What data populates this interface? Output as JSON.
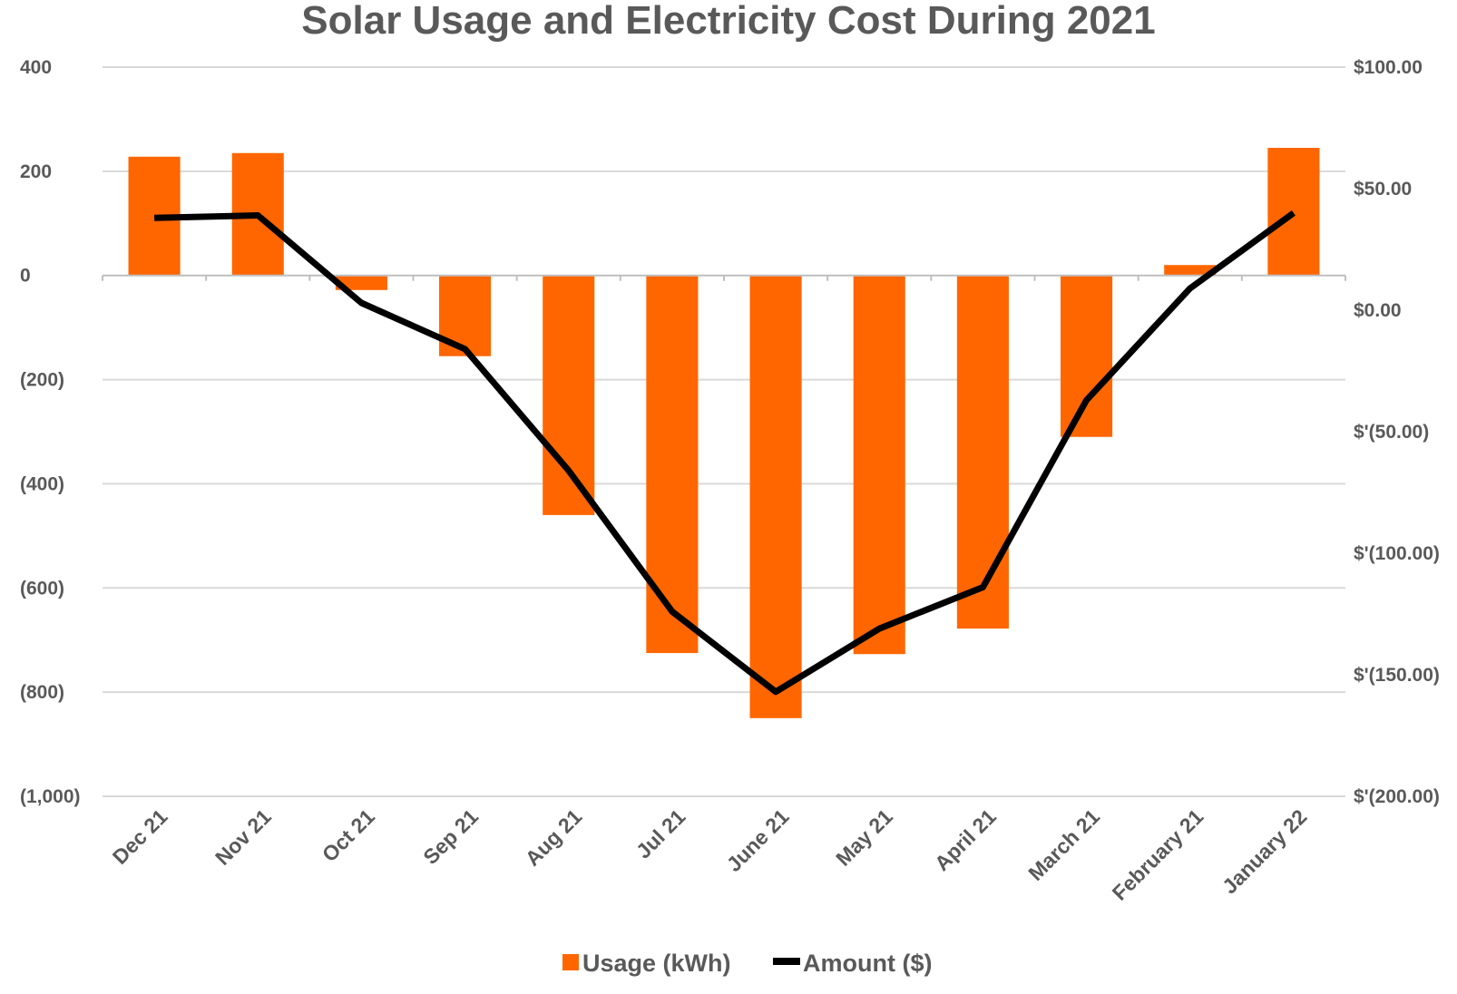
{
  "chart_data": {
    "type": "bar",
    "title": "Solar Usage and Electricity Cost  During 2021",
    "categories": [
      "Dec 21",
      "Nov 21",
      "Oct 21",
      "Sep 21",
      "Aug 21",
      "Jul 21",
      "June 21",
      "May 21",
      "April 21",
      "March 21",
      "February 21",
      "January 22"
    ],
    "series": [
      {
        "name": "Usage (kWh)",
        "type": "bar",
        "axis": "left",
        "color": "#ff6600",
        "values": [
          228,
          235,
          -28,
          -155,
          -460,
          -725,
          -850,
          -727,
          -678,
          -310,
          20,
          245
        ]
      },
      {
        "name": "Amount ($)",
        "type": "line",
        "axis": "right",
        "color": "#000000",
        "values": [
          38,
          39,
          3,
          -16,
          -66,
          -124,
          -157,
          -131,
          -114,
          -37,
          9,
          40
        ]
      }
    ],
    "y_left": {
      "lim": [
        -1000,
        400
      ],
      "ticks": [
        400,
        200,
        0,
        -200,
        -400,
        -600,
        -800,
        -1000
      ],
      "tick_labels": [
        "400",
        "200",
        "0",
        "(200)",
        "(400)",
        "(600)",
        "(800)",
        "(1,000)"
      ]
    },
    "y_right": {
      "lim": [
        -200,
        100
      ],
      "ticks": [
        100,
        50,
        0,
        -50,
        -100,
        -150,
        -200
      ],
      "tick_labels": [
        "$100.00",
        "$50.00",
        "$0.00",
        "$'(50.00)",
        "$'(100.00)",
        "$'(150.00)",
        "$'(200.00)"
      ]
    },
    "grid": true,
    "legend_position": "bottom"
  }
}
